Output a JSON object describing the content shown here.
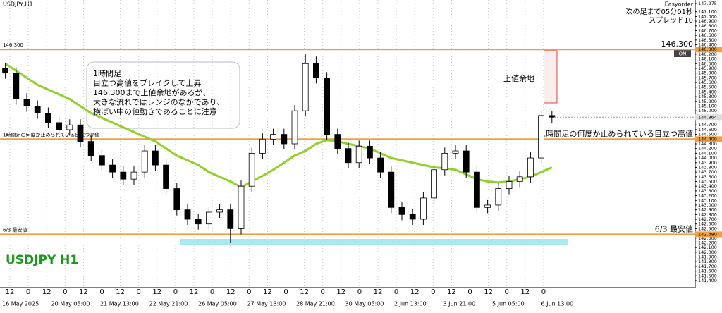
{
  "chart_data": {
    "type": "candlestick",
    "title": "USDJPY,H1",
    "watermark": "USDJPY H1",
    "info": [
      "Easyorder",
      "次の足まで05分01秒",
      "スプレッド10"
    ],
    "badge": "ON",
    "annotation": [
      "1時間足",
      "目立つ高値をブレイクして上昇",
      "146.300まで上値余地があるが、",
      "大きな流れではレンジのなかであり、",
      "横ばい中の値動きであることに注意"
    ],
    "upside_label": "上値余地",
    "open": [
      145.9,
      145.8,
      145.25,
      145.1,
      144.95,
      144.75,
      144.6,
      144.7,
      144.35,
      144.05,
      143.85,
      143.7,
      143.55,
      143.7,
      144.15,
      143.85,
      143.35,
      142.9,
      142.7,
      142.6,
      142.85,
      142.9,
      142.5,
      143.4,
      144.1,
      144.4,
      144.5,
      144.3,
      145.0,
      146.0,
      145.7,
      144.5,
      144.2,
      143.9,
      144.25,
      144.0,
      143.7,
      142.95,
      142.8,
      142.7,
      143.15,
      143.75,
      144.1,
      144.15,
      143.7,
      142.95,
      143.0,
      143.35,
      143.5,
      143.6,
      144.0,
      144.9
    ],
    "high": [
      146.02,
      145.92,
      145.37,
      145.22,
      145.07,
      144.87,
      144.82,
      144.82,
      144.47,
      144.17,
      143.97,
      143.82,
      143.82,
      144.27,
      144.27,
      143.97,
      143.47,
      143.02,
      142.82,
      142.97,
      143.02,
      143.02,
      143.52,
      144.22,
      144.52,
      144.62,
      144.62,
      145.12,
      146.2,
      146.15,
      145.82,
      144.62,
      144.32,
      144.37,
      144.37,
      144.12,
      143.82,
      143.07,
      142.92,
      143.27,
      143.87,
      144.22,
      144.27,
      144.27,
      143.82,
      143.12,
      143.47,
      143.62,
      143.72,
      144.12,
      145.02,
      145.0
    ],
    "low": [
      145.68,
      145.13,
      144.98,
      144.83,
      144.63,
      144.48,
      144.48,
      144.23,
      143.93,
      143.73,
      143.58,
      143.43,
      143.43,
      143.58,
      143.73,
      143.23,
      142.78,
      142.58,
      142.48,
      142.48,
      142.73,
      142.2,
      142.38,
      143.28,
      143.98,
      144.28,
      144.18,
      144.18,
      144.88,
      145.58,
      144.38,
      144.08,
      143.78,
      143.78,
      143.88,
      143.58,
      142.83,
      142.68,
      142.58,
      142.58,
      143.03,
      143.63,
      143.98,
      143.58,
      142.83,
      142.83,
      142.88,
      143.23,
      143.38,
      143.48,
      143.88,
      144.74
    ],
    "close": [
      145.8,
      145.25,
      145.1,
      144.95,
      144.75,
      144.6,
      144.7,
      144.35,
      144.05,
      143.85,
      143.7,
      143.55,
      143.7,
      144.15,
      143.85,
      143.35,
      142.9,
      142.7,
      142.6,
      142.85,
      142.9,
      142.5,
      143.4,
      144.1,
      144.4,
      144.5,
      144.3,
      145.0,
      146.0,
      145.7,
      144.5,
      144.2,
      143.9,
      144.25,
      144.0,
      143.7,
      142.95,
      142.8,
      142.7,
      143.15,
      143.75,
      144.1,
      144.15,
      143.7,
      142.95,
      143.0,
      143.35,
      143.5,
      143.6,
      144.0,
      144.9,
      144.864
    ],
    "ma": {
      "color": "#8fd12a",
      "values": [
        146.0,
        145.85,
        145.7,
        145.55,
        145.45,
        145.35,
        145.25,
        145.1,
        144.95,
        144.85,
        144.75,
        144.65,
        144.55,
        144.45,
        144.35,
        144.2,
        144.05,
        143.95,
        143.85,
        143.7,
        143.6,
        143.5,
        143.38,
        143.5,
        143.62,
        143.75,
        143.9,
        144.05,
        144.15,
        144.3,
        144.38,
        144.35,
        144.3,
        144.25,
        144.2,
        144.1,
        144.0,
        143.95,
        143.9,
        143.85,
        143.8,
        143.78,
        143.75,
        143.65,
        143.55,
        143.5,
        143.48,
        143.5,
        143.55,
        143.6,
        143.7,
        143.8
      ]
    },
    "current": {
      "value": 144.864,
      "label": "144.864"
    },
    "levels": [
      {
        "value": 146.3,
        "label": "146.300",
        "axis_label": "146.300",
        "color": "#f0a040"
      },
      {
        "value": 144.4,
        "label": "1時間足の何度か止められている目立つ高値",
        "axis_label": "144.400",
        "color": "#f0a040"
      },
      {
        "value": 142.38,
        "label": "6/3 最安値",
        "axis_label": "142.380",
        "color": "#f0a040"
      }
    ],
    "ylim": [
      141.25,
      147.35
    ],
    "yticks": [
      {
        "value": 141.4,
        "label": "141.400"
      },
      {
        "value": 141.5,
        "label": "141.500"
      },
      {
        "value": 141.6,
        "label": "141.600"
      },
      {
        "value": 141.7,
        "label": "141.700"
      },
      {
        "value": 141.8,
        "label": "141.800"
      },
      {
        "value": 141.9,
        "label": "141.900"
      },
      {
        "value": 142.0,
        "label": "142.000"
      },
      {
        "value": 142.1,
        "label": "142.100"
      },
      {
        "value": 142.2,
        "label": "142.200"
      },
      {
        "value": 142.3,
        "label": "142.300"
      },
      {
        "value": 142.4,
        "label": "142.400"
      },
      {
        "value": 142.5,
        "label": "142.500"
      },
      {
        "value": 142.6,
        "label": "142.600"
      },
      {
        "value": 142.7,
        "label": "142.700"
      },
      {
        "value": 142.8,
        "label": "142.800"
      },
      {
        "value": 142.9,
        "label": "142.900"
      },
      {
        "value": 143.0,
        "label": "143.000"
      },
      {
        "value": 143.1,
        "label": "143.100"
      },
      {
        "value": 143.2,
        "label": "143.200"
      },
      {
        "value": 143.3,
        "label": "143.300"
      },
      {
        "value": 143.4,
        "label": "143.400"
      },
      {
        "value": 143.5,
        "label": "143.500"
      },
      {
        "value": 143.6,
        "label": "143.600"
      },
      {
        "value": 143.7,
        "label": "143.700"
      },
      {
        "value": 143.8,
        "label": "143.800"
      },
      {
        "value": 143.9,
        "label": "143.900"
      },
      {
        "value": 144.0,
        "label": "144.000"
      },
      {
        "value": 144.1,
        "label": "144.100"
      },
      {
        "value": 144.2,
        "label": "144.200"
      },
      {
        "value": 144.3,
        "label": "144.300"
      },
      {
        "value": 144.5,
        "label": "144.500"
      },
      {
        "value": 144.6,
        "label": "144.600"
      },
      {
        "value": 144.7,
        "label": "144.700"
      },
      {
        "value": 145.0,
        "label": "145.000"
      },
      {
        "value": 145.1,
        "label": "145.100"
      },
      {
        "value": 145.2,
        "label": "145.200"
      },
      {
        "value": 145.3,
        "label": "145.300"
      },
      {
        "value": 145.4,
        "label": "145.400"
      },
      {
        "value": 145.5,
        "label": "145.500"
      },
      {
        "value": 145.6,
        "label": "145.600"
      },
      {
        "value": 145.7,
        "label": "145.700"
      },
      {
        "value": 145.8,
        "label": "145.800"
      },
      {
        "value": 145.9,
        "label": "145.900"
      },
      {
        "value": 146.0,
        "label": "146.000"
      },
      {
        "value": 146.1,
        "label": "146.100"
      },
      {
        "value": 146.2,
        "label": "146.200"
      },
      {
        "value": 146.4,
        "label": "146.400"
      },
      {
        "value": 146.5,
        "label": "146.500"
      },
      {
        "value": 146.6,
        "label": "146.600"
      },
      {
        "value": 146.7,
        "label": "146.700"
      },
      {
        "value": 146.8,
        "label": "146.800"
      },
      {
        "value": 146.9,
        "label": "146.900"
      },
      {
        "value": 147.0,
        "label": "147.000"
      },
      {
        "value": 147.1,
        "label": "147.100"
      },
      {
        "value": 147.275,
        "label": "147.275"
      }
    ],
    "x_labels": [
      "16 May 2025",
      "20 May 05:00",
      "21 May 13:00",
      "22 May 21:00",
      "26 May 05:00",
      "27 May 13:00",
      "28 May 21:00",
      "30 May 05:00",
      "2 Jun 13:00",
      "3 Jun 21:00",
      "5 Jun 05:00",
      "6 Jun 13:00"
    ],
    "hour_labels": [
      "12",
      "0",
      "12",
      "0",
      "12",
      "0",
      "12",
      "0",
      "12",
      "0",
      "12",
      "0",
      "12",
      "0",
      "12",
      "0",
      "12",
      "0",
      "12",
      "0",
      "12",
      "0",
      "12",
      "0",
      "12",
      "0",
      "12",
      "0",
      "12",
      "0"
    ]
  }
}
